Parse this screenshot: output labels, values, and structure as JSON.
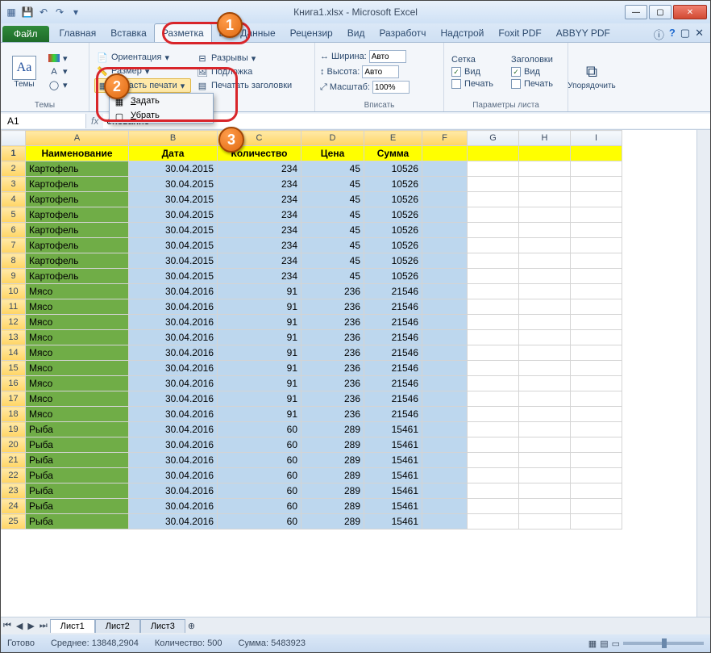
{
  "title": {
    "doc": "Книга1.xlsx",
    "app": "Microsoft Excel"
  },
  "tabs": {
    "file": "Файл",
    "items": [
      "Главная",
      "Вставка",
      "Разметка",
      "ы",
      "Данные",
      "Рецензир",
      "Вид",
      "Разработч",
      "Надстрой",
      "Foxit PDF",
      "ABBYY PDF"
    ],
    "active_index": 2
  },
  "ribbon": {
    "themes": {
      "big": "Темы",
      "glyph": "Aa",
      "label": "Темы"
    },
    "page_setup": {
      "orientation": "Ориентация",
      "size": "Размер",
      "print_area": "Область печати",
      "breaks": "Разрывы",
      "background": "Подложка",
      "print_titles": "Печатать заголовки",
      "label": "цы",
      "dropdown": {
        "set": "Задать",
        "clear": "Убрать"
      }
    },
    "fit": {
      "width": "Ширина:",
      "height": "Высота:",
      "scale": "Масштаб:",
      "width_val": "Авто",
      "height_val": "Авто",
      "scale_val": "100%",
      "label": "Вписать"
    },
    "sheet_opts": {
      "grid": "Сетка",
      "headings": "Заголовки",
      "view": "Вид",
      "print": "Печать",
      "label": "Параметры листа"
    },
    "arrange": {
      "btn": "Упорядочить"
    }
  },
  "namebox": "A1",
  "formula_prefix": "енование",
  "columns": [
    "A",
    "B",
    "C",
    "D",
    "E",
    "F",
    "G",
    "H",
    "I"
  ],
  "headers": {
    "A": "Наименование",
    "B": "Дата",
    "C": "Количество",
    "D": "Цена",
    "E": "Сумма"
  },
  "rows": [
    {
      "n": 2,
      "a": "Картофель",
      "b": "30.04.2015",
      "c": 234,
      "d": 45,
      "e": 10526
    },
    {
      "n": 3,
      "a": "Картофель",
      "b": "30.04.2015",
      "c": 234,
      "d": 45,
      "e": 10526
    },
    {
      "n": 4,
      "a": "Картофель",
      "b": "30.04.2015",
      "c": 234,
      "d": 45,
      "e": 10526
    },
    {
      "n": 5,
      "a": "Картофель",
      "b": "30.04.2015",
      "c": 234,
      "d": 45,
      "e": 10526
    },
    {
      "n": 6,
      "a": "Картофель",
      "b": "30.04.2015",
      "c": 234,
      "d": 45,
      "e": 10526
    },
    {
      "n": 7,
      "a": "Картофель",
      "b": "30.04.2015",
      "c": 234,
      "d": 45,
      "e": 10526
    },
    {
      "n": 8,
      "a": "Картофель",
      "b": "30.04.2015",
      "c": 234,
      "d": 45,
      "e": 10526
    },
    {
      "n": 9,
      "a": "Картофель",
      "b": "30.04.2015",
      "c": 234,
      "d": 45,
      "e": 10526
    },
    {
      "n": 10,
      "a": "Мясо",
      "b": "30.04.2016",
      "c": 91,
      "d": 236,
      "e": 21546
    },
    {
      "n": 11,
      "a": "Мясо",
      "b": "30.04.2016",
      "c": 91,
      "d": 236,
      "e": 21546
    },
    {
      "n": 12,
      "a": "Мясо",
      "b": "30.04.2016",
      "c": 91,
      "d": 236,
      "e": 21546
    },
    {
      "n": 13,
      "a": "Мясо",
      "b": "30.04.2016",
      "c": 91,
      "d": 236,
      "e": 21546
    },
    {
      "n": 14,
      "a": "Мясо",
      "b": "30.04.2016",
      "c": 91,
      "d": 236,
      "e": 21546
    },
    {
      "n": 15,
      "a": "Мясо",
      "b": "30.04.2016",
      "c": 91,
      "d": 236,
      "e": 21546
    },
    {
      "n": 16,
      "a": "Мясо",
      "b": "30.04.2016",
      "c": 91,
      "d": 236,
      "e": 21546
    },
    {
      "n": 17,
      "a": "Мясо",
      "b": "30.04.2016",
      "c": 91,
      "d": 236,
      "e": 21546
    },
    {
      "n": 18,
      "a": "Мясо",
      "b": "30.04.2016",
      "c": 91,
      "d": 236,
      "e": 21546
    },
    {
      "n": 19,
      "a": "Рыба",
      "b": "30.04.2016",
      "c": 60,
      "d": 289,
      "e": 15461
    },
    {
      "n": 20,
      "a": "Рыба",
      "b": "30.04.2016",
      "c": 60,
      "d": 289,
      "e": 15461
    },
    {
      "n": 21,
      "a": "Рыба",
      "b": "30.04.2016",
      "c": 60,
      "d": 289,
      "e": 15461
    },
    {
      "n": 22,
      "a": "Рыба",
      "b": "30.04.2016",
      "c": 60,
      "d": 289,
      "e": 15461
    },
    {
      "n": 23,
      "a": "Рыба",
      "b": "30.04.2016",
      "c": 60,
      "d": 289,
      "e": 15461
    },
    {
      "n": 24,
      "a": "Рыба",
      "b": "30.04.2016",
      "c": 60,
      "d": 289,
      "e": 15461
    },
    {
      "n": 25,
      "a": "Рыба",
      "b": "30.04.2016",
      "c": 60,
      "d": 289,
      "e": 15461
    }
  ],
  "sheets": [
    "Лист1",
    "Лист2",
    "Лист3"
  ],
  "active_sheet": 0,
  "status": {
    "ready": "Готово",
    "avg_label": "Среднее:",
    "avg": "13848,2904",
    "count_label": "Количество:",
    "count": "500",
    "sum_label": "Сумма:",
    "sum": "5483923"
  },
  "badges": [
    "1",
    "2",
    "3"
  ]
}
